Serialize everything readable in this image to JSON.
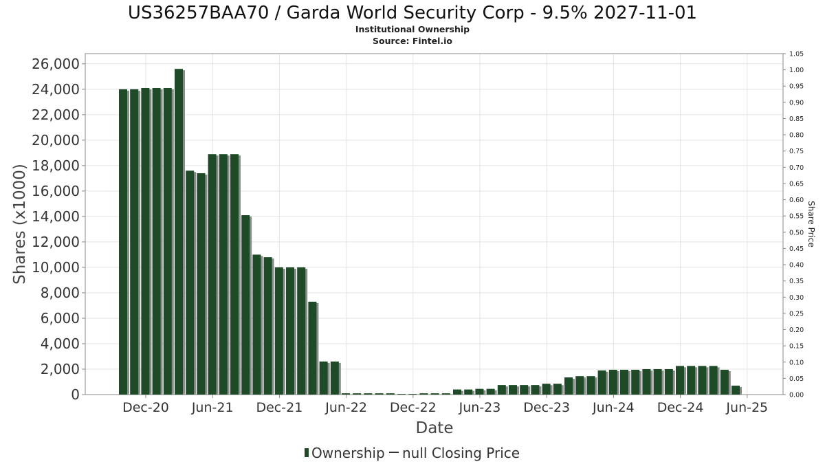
{
  "chart_data": {
    "type": "bar",
    "title": "US36257BAA70 / Garda World Security Corp - 9.5% 2027-11-01",
    "subtitle": "Institutional Ownership",
    "source": "Source: Fintel.io",
    "xlabel": "Date",
    "ylabel": "Shares (x1000)",
    "y2label": "Share Price",
    "ylim": [
      0,
      26800
    ],
    "y2lim": [
      0,
      1.05
    ],
    "yticks": [
      "0",
      "2,000",
      "4,000",
      "6,000",
      "8,000",
      "10,000",
      "12,000",
      "14,000",
      "16,000",
      "18,000",
      "20,000",
      "22,000",
      "24,000",
      "26,000"
    ],
    "y2ticks": [
      "0.00",
      "0.05",
      "0.10",
      "0.15",
      "0.20",
      "0.25",
      "0.30",
      "0.35",
      "0.40",
      "0.45",
      "0.50",
      "0.55",
      "0.60",
      "0.65",
      "0.70",
      "0.75",
      "0.80",
      "0.85",
      "0.90",
      "0.95",
      "1.00",
      "1.05"
    ],
    "xticks": [
      "Dec-20",
      "Jun-21",
      "Dec-21",
      "Jun-22",
      "Dec-22",
      "Jun-23",
      "Dec-23",
      "Jun-24",
      "Dec-24",
      "Jun-25"
    ],
    "grid": true,
    "bar_color": "#1f4a28",
    "series": [
      {
        "name": "Ownership",
        "values": [
          24000,
          24000,
          24100,
          24100,
          24100,
          25600,
          17600,
          17400,
          18900,
          18900,
          18900,
          14100,
          11000,
          10800,
          10000,
          10000,
          10000,
          7300,
          2600,
          2600,
          100,
          100,
          100,
          100,
          100,
          50,
          50,
          100,
          100,
          100,
          400,
          400,
          450,
          450,
          750,
          750,
          750,
          750,
          850,
          850,
          1350,
          1450,
          1450,
          1900,
          1950,
          1950,
          1950,
          2000,
          2000,
          2000,
          2250,
          2250,
          2250,
          2250,
          1950,
          700
        ]
      }
    ],
    "legend": [
      {
        "label": "Ownership",
        "symbol": "bar"
      },
      {
        "label": "null Closing Price",
        "symbol": "line"
      }
    ],
    "legend_position": "bottom"
  }
}
